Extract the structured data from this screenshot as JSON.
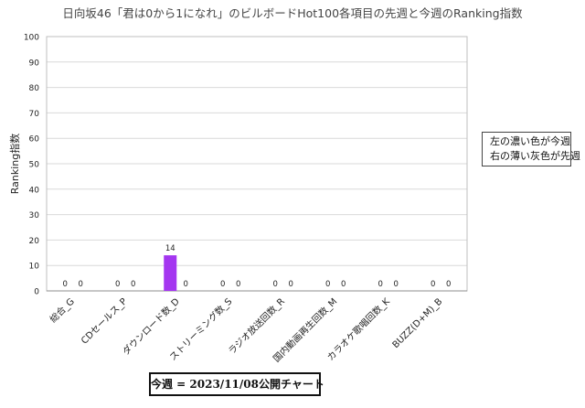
{
  "chart_data": {
    "type": "bar",
    "title": "日向坂46「君は0から1になれ」のビルボードHot100各項目の先週と今週のRanking指数",
    "ylabel": "Ranking指数",
    "xlabel": "",
    "ylim": [
      0,
      100
    ],
    "yticks": [
      0,
      10,
      20,
      30,
      40,
      50,
      60,
      70,
      80,
      90,
      100
    ],
    "grid": true,
    "categories": [
      "総合_G",
      "CDセールス_P",
      "ダウンロード数_D",
      "ストリーミング数_S",
      "ラジオ放送回数_R",
      "国内動画再生回数_M",
      "カラオケ歌唱回数_K",
      "BUZZ(D+M)_B"
    ],
    "series": [
      {
        "values": [
          0,
          0,
          14,
          0,
          0,
          0,
          0,
          0
        ],
        "color": "#a436f0"
      },
      {
        "values": [
          0,
          0,
          0,
          0,
          0,
          0,
          0,
          0
        ],
        "color": "#c8c8c8"
      }
    ],
    "data_labels": true
  },
  "legend_note": {
    "line1": "左の濃い色が今週",
    "line2": "右の薄い灰色が先週"
  },
  "chart_week": "今週 = 2023/11/08公開チャート"
}
